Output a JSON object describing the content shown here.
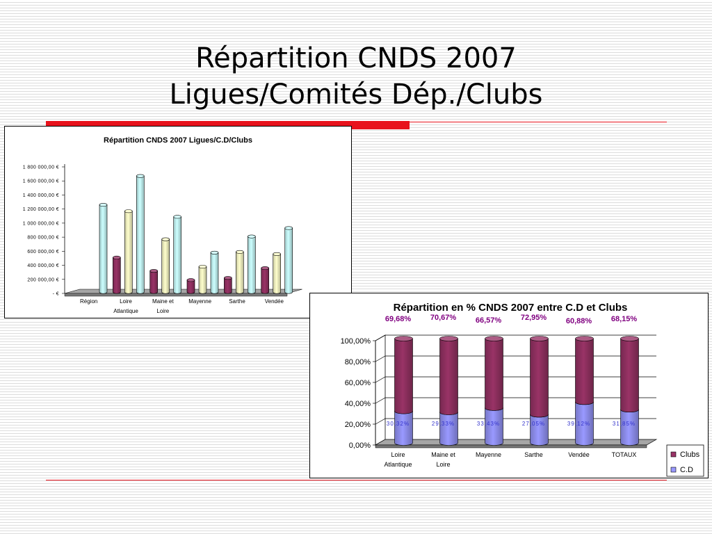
{
  "slide": {
    "title_line1": "Répartition CNDS 2007",
    "title_line2": "Ligues/Comités Dép./Clubs"
  },
  "chart_data": [
    {
      "type": "bar",
      "title": "Répartition CNDS 2007 Ligues/C.D/Clubs",
      "categories": [
        "Région",
        "Loire Atlantique",
        "Maine et Loire",
        "Mayenne",
        "Sarthe",
        "Vendée"
      ],
      "category_lines": [
        [
          "Région"
        ],
        [
          "Loire",
          "Atlantique"
        ],
        [
          "Maine et",
          "Loire"
        ],
        [
          "Mayenne"
        ],
        [
          "Sarthe"
        ],
        [
          "Vendée"
        ]
      ],
      "series": [
        {
          "values": [
            0,
            510000,
            320000,
            190000,
            220000,
            360000
          ],
          "color": "#993366"
        },
        {
          "values": [
            0,
            1170000,
            770000,
            380000,
            590000,
            560000
          ],
          "color": "#ffffcc"
        },
        {
          "values": [
            1260000,
            1670000,
            1090000,
            580000,
            810000,
            930000
          ],
          "color": "#ccffff"
        }
      ],
      "yticks": [
        "-      €",
        "200 000,00 €",
        "400 000,00 €",
        "600 000,00 €",
        "800 000,00 €",
        "1 000 000,00 €",
        "1 200 000,00 €",
        "1 400 000,00 €",
        "1 600 000,00 €",
        "1 800 000,00 €"
      ],
      "ylim": [
        0,
        1800000
      ],
      "grid": false
    },
    {
      "type": "bar",
      "stacked": true,
      "title": "Répartition en % CNDS 2007 entre C.D et Clubs",
      "categories": [
        "Loire Atlantique",
        "Maine et Loire",
        "Mayenne",
        "Sarthe",
        "Vendée",
        "TOTAUX"
      ],
      "category_lines": [
        [
          "Loire",
          "Atlantique"
        ],
        [
          "Maine et",
          "Loire"
        ],
        [
          "Mayenne"
        ],
        [
          "Sarthe"
        ],
        [
          "Vendée"
        ],
        [
          "TOTAUX"
        ]
      ],
      "series": [
        {
          "name": "C.D",
          "values": [
            30.32,
            29.33,
            33.43,
            27.05,
            39.12,
            31.85
          ],
          "labels": [
            "30,32%",
            "29,33%",
            "33,43%",
            "27,05%",
            "39,12%",
            "31,85%"
          ],
          "color": "#9999ff",
          "label_color": "#3333cc"
        },
        {
          "name": "Clubs",
          "values": [
            69.68,
            70.67,
            66.57,
            72.95,
            60.88,
            68.15
          ],
          "labels": [
            "69,68%",
            "70,67%",
            "66,57%",
            "72,95%",
            "60,88%",
            "68,15%"
          ],
          "color": "#993366",
          "label_color": "#800080"
        }
      ],
      "yticks": [
        "0,00%",
        "20,00%",
        "40,00%",
        "60,00%",
        "80,00%",
        "100,00%"
      ],
      "ylim": [
        0,
        100
      ],
      "grid": true,
      "legend": {
        "placement": "right",
        "items": [
          "Clubs",
          "C.D"
        ]
      }
    }
  ]
}
